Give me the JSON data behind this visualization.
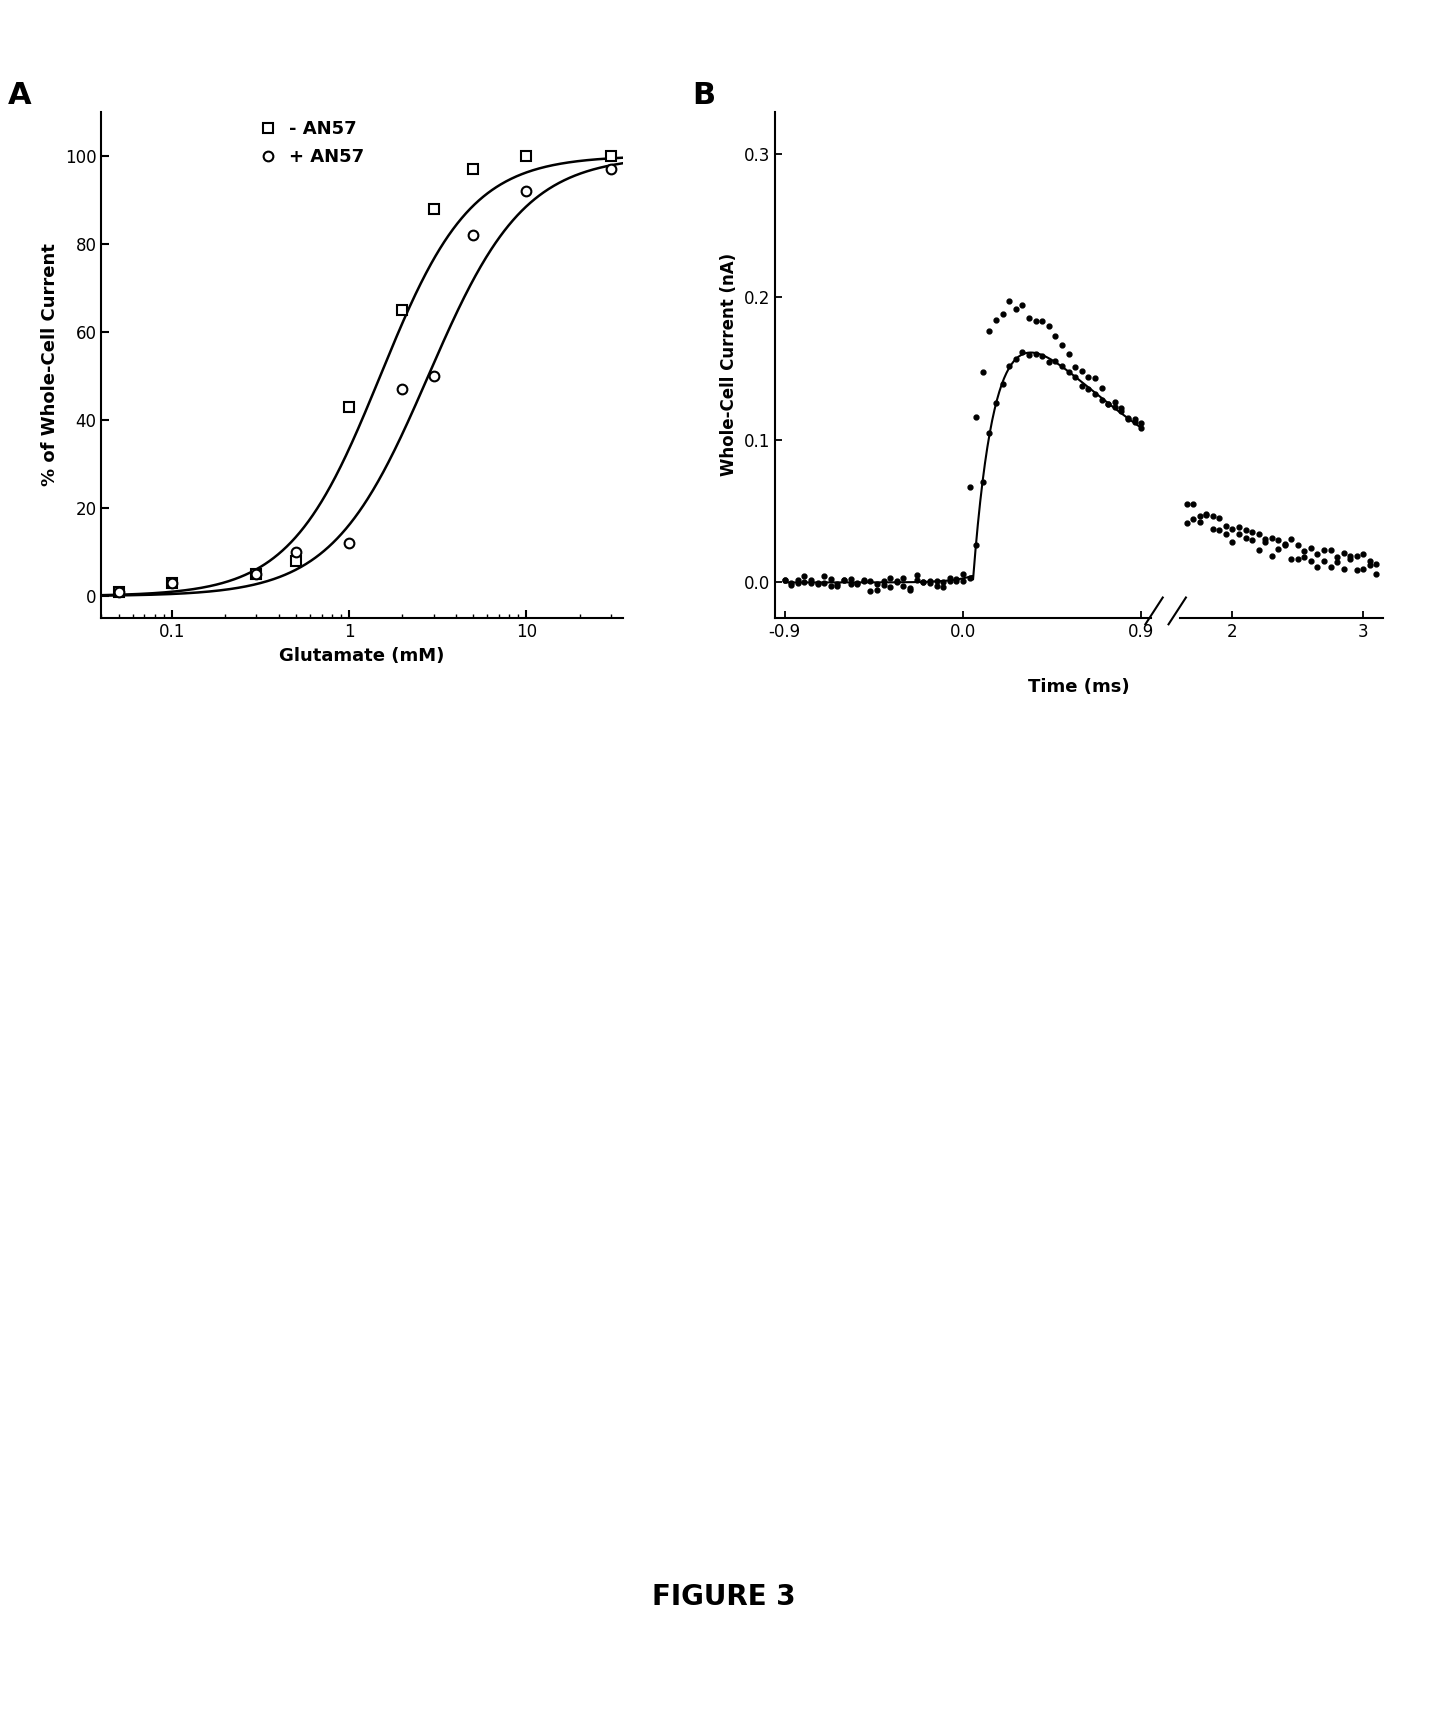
{
  "panel_A": {
    "label": "A",
    "xlabel": "Glutamate (mM)",
    "ylabel": "% of Whole-Cell Current",
    "ylim": [
      -5,
      110
    ],
    "xlim_log": [
      0.04,
      35
    ],
    "series1_label": "- AN57",
    "series2_label": "+ AN57",
    "series1_x": [
      0.05,
      0.1,
      0.3,
      0.5,
      1.0,
      2.0,
      3.0,
      5.0,
      10.0,
      30.0
    ],
    "series1_y": [
      1,
      3,
      5,
      8,
      43,
      65,
      88,
      97,
      100,
      100
    ],
    "series2_x": [
      0.05,
      0.1,
      0.3,
      0.5,
      1.0,
      2.0,
      3.0,
      5.0,
      10.0,
      30.0
    ],
    "series2_y": [
      1,
      3,
      5,
      10,
      12,
      47,
      50,
      82,
      92,
      97
    ],
    "ec50_1": 1.5,
    "ec50_2": 2.8,
    "hill_1": 1.7,
    "hill_2": 1.6
  },
  "panel_B": {
    "label": "B",
    "xlabel": "Time (ms)",
    "ylabel": "Whole-Cell Current (nA)",
    "ylim": [
      -0.025,
      0.33
    ],
    "yticks": [
      0.0,
      0.1,
      0.2,
      0.3
    ],
    "xlim_left": [
      -0.95,
      0.95
    ],
    "xlim_right": [
      1.6,
      3.15
    ],
    "xticks_left": [
      -0.9,
      0.0,
      0.9
    ],
    "xtick_labels_left": [
      "-0.9",
      "0.0",
      "0.9"
    ],
    "xticks_right": [
      2,
      3
    ],
    "xtick_labels_right": [
      "2",
      "3"
    ]
  },
  "figure_label": "FIGURE 3",
  "background_color": "#ffffff"
}
